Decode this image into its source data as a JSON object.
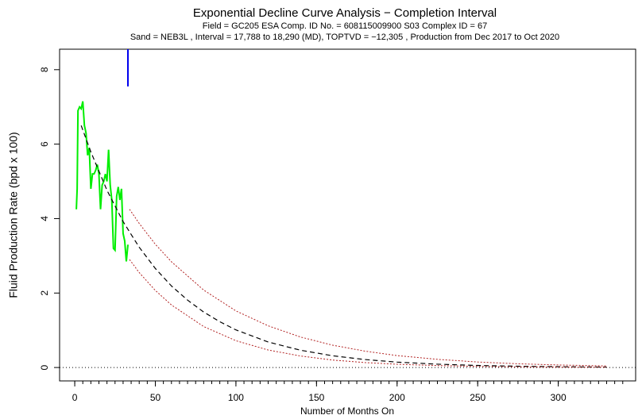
{
  "chart_data": {
    "type": "line",
    "title": "Exponential Decline Curve Analysis − Completion Interval",
    "subtitle": "Field =  GC205    ESA Comp. ID No. =  608115009900 S03    Complex ID =  67",
    "subtitle2": "Sand =  NEB3L ,  Interval =  17,788 to 18,290 (MD),  TOPTVD = −12,305 ,  Production from  Dec 2017 to Oct 2020",
    "x_label": "Number of Months On",
    "y_label": "Fluid Production Rate (bpd x 100)",
    "xlim": [
      -9.4,
      348
    ],
    "ylim": [
      -0.36,
      8.55
    ],
    "xticks": [
      0,
      50,
      100,
      150,
      200,
      250,
      300
    ],
    "xminorticks": [
      0,
      5,
      10,
      15,
      20,
      25,
      30,
      35,
      40,
      45,
      50,
      55,
      60,
      65,
      70,
      75,
      80,
      85,
      90,
      95,
      100,
      105,
      110,
      115,
      120,
      125,
      130,
      135,
      140,
      145,
      150,
      155,
      160,
      165,
      170,
      175,
      180,
      185,
      190,
      195,
      200,
      205,
      210,
      215,
      220,
      225,
      230,
      235,
      240,
      245,
      250,
      255,
      260,
      265,
      270,
      275,
      280,
      285,
      290,
      295,
      300,
      305,
      310,
      315,
      320,
      325,
      330,
      335,
      340
    ],
    "yticks": [
      0,
      2,
      4,
      6,
      8
    ],
    "hline": 0,
    "series": [
      {
        "color": "#00ee00",
        "dash": "solid",
        "width": 2,
        "x": [
          1,
          1.5,
          2,
          3,
          4,
          5,
          6,
          7,
          8,
          9,
          10,
          11,
          12,
          13,
          14,
          15,
          16,
          17,
          18,
          19,
          20,
          21,
          22,
          23,
          24,
          25,
          26,
          27,
          28,
          29,
          30,
          31,
          32,
          33
        ],
        "values": [
          4.25,
          4.8,
          6.9,
          7.0,
          6.95,
          7.15,
          6.5,
          6.3,
          5.7,
          5.9,
          4.8,
          5.2,
          5.2,
          5.3,
          5.45,
          5.2,
          4.25,
          4.9,
          5.0,
          5.2,
          5.0,
          5.85,
          4.9,
          4.5,
          3.2,
          3.15,
          4.6,
          4.85,
          4.5,
          4.8,
          3.6,
          3.4,
          2.85,
          3.3
        ]
      },
      {
        "color": "#0000ee",
        "dash": "solid",
        "width": 2,
        "x": [
          33,
          33
        ],
        "values": [
          8.6,
          7.55
        ]
      },
      {
        "color": "#000000",
        "dash": "6,4",
        "width": 1.2,
        "x": [
          4,
          10,
          20,
          30,
          40,
          50,
          60,
          70,
          80,
          90,
          100,
          120,
          140,
          160,
          180,
          200,
          225,
          250,
          275,
          300,
          330
        ],
        "values": [
          6.5,
          5.79,
          4.76,
          3.92,
          3.23,
          2.66,
          2.19,
          1.81,
          1.49,
          1.23,
          1.01,
          0.685,
          0.465,
          0.315,
          0.214,
          0.145,
          0.089,
          0.055,
          0.034,
          0.021,
          0.012
        ]
      },
      {
        "color": "#b22222",
        "dash": "2,2",
        "width": 1,
        "x": [
          34,
          40,
          50,
          60,
          80,
          100,
          120,
          140,
          160,
          180,
          200,
          225,
          250,
          275,
          300,
          330
        ],
        "values": [
          4.25,
          3.87,
          3.31,
          2.84,
          2.08,
          1.52,
          1.12,
          0.82,
          0.6,
          0.44,
          0.32,
          0.22,
          0.148,
          0.1,
          0.068,
          0.043
        ]
      },
      {
        "color": "#b22222",
        "dash": "2,2",
        "width": 1,
        "x": [
          34,
          40,
          50,
          60,
          80,
          100,
          120,
          140,
          160,
          180,
          200,
          225,
          250,
          275,
          300,
          330
        ],
        "values": [
          2.9,
          2.55,
          2.07,
          1.68,
          1.1,
          0.72,
          0.47,
          0.31,
          0.2,
          0.133,
          0.087,
          0.052,
          0.03,
          0.018,
          0.011,
          0.006
        ]
      }
    ]
  }
}
